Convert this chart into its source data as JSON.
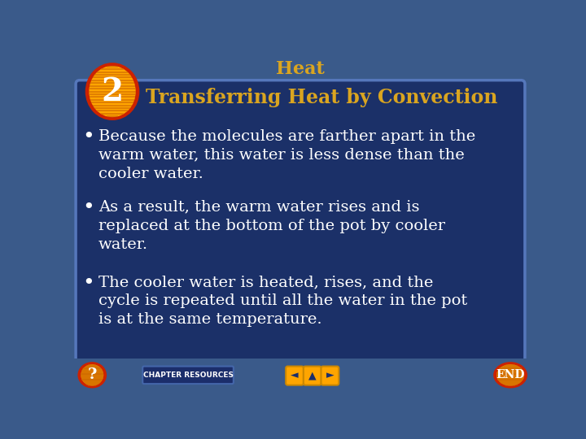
{
  "title": "Heat",
  "title_color": "#DAA520",
  "bg_outer_color": "#3A5A8A",
  "bg_inner_color": "#1B3068",
  "slide_title": "Transferring Heat by Convection",
  "slide_title_color": "#DAA520",
  "number": "2",
  "number_border_color": "#CC2200",
  "number_fill_color": "#FFA500",
  "number_stripe_color": "#CC6600",
  "bullet_text_color": "#FFFFFF",
  "bullets": [
    "Because the molecules are farther apart in the\nwarm water, this water is less dense than the\ncooler water.",
    "As a result, the warm water rises and is\nreplaced at the bottom of the pot by cooler\nwater.",
    "The cooler water is heated, rises, and the\ncycle is repeated until all the water in the pot\nis at the same temperature."
  ],
  "inner_border_color": "#5577BB",
  "end_btn_border": "#CC2200",
  "end_btn_fill": "#FFA500",
  "end_btn_text": "END",
  "chapter_btn_fill": "#1B2E6B",
  "chapter_btn_border": "#4466AA",
  "chapter_btn_text": "CHAPTER RESOURCES",
  "nav_fill": "#FFA500",
  "nav_border": "#CC8800",
  "question_border": "#CC2200",
  "question_fill": "#FFA500"
}
